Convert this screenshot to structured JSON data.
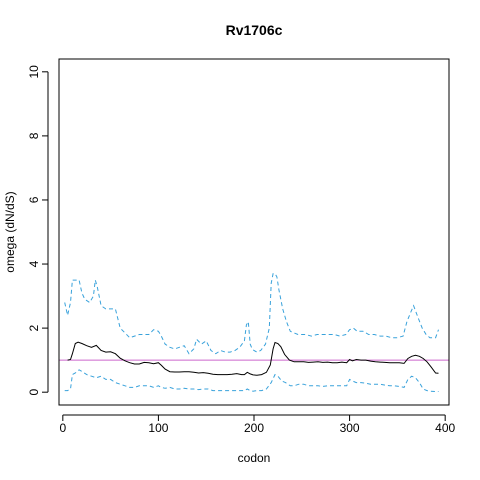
{
  "chart_data": {
    "type": "line",
    "title": "Rv1706c",
    "xlabel": "codon",
    "ylabel": "omega (dN/dS)",
    "xlim": [
      -4,
      404
    ],
    "ylim": [
      -0.4,
      10.4
    ],
    "x_ticks": [
      0,
      100,
      200,
      300,
      400
    ],
    "y_ticks": [
      0,
      2,
      4,
      6,
      8,
      10
    ],
    "x_tick_labels": [
      "0",
      "100",
      "200",
      "300",
      "400"
    ],
    "y_tick_labels": [
      "0",
      "2",
      "4",
      "6",
      "8",
      "10"
    ],
    "reference_line": {
      "y": 1,
      "color": "#cc66cc"
    },
    "series": [
      {
        "role": "estimate",
        "color": "#000000",
        "dash": "solid",
        "x": [
          5,
          8,
          10,
          13,
          16,
          20,
          25,
          30,
          35,
          40,
          45,
          50,
          55,
          60,
          65,
          70,
          75,
          80,
          85,
          90,
          95,
          100,
          103,
          107,
          112,
          117,
          122,
          127,
          132,
          137,
          142,
          147,
          152,
          157,
          162,
          167,
          172,
          177,
          182,
          187,
          190,
          193,
          196,
          199,
          203,
          208,
          213,
          217,
          220,
          222,
          225,
          228,
          232,
          237,
          242,
          247,
          252,
          257,
          262,
          267,
          272,
          277,
          282,
          287,
          292,
          297,
          300,
          303,
          307,
          312,
          317,
          322,
          327,
          332,
          337,
          342,
          347,
          352,
          357,
          361,
          365,
          369,
          373,
          377,
          381,
          385,
          390,
          393
        ],
        "y": [
          1.0,
          1.02,
          1.2,
          1.52,
          1.56,
          1.52,
          1.45,
          1.4,
          1.46,
          1.3,
          1.25,
          1.26,
          1.2,
          1.06,
          0.98,
          0.92,
          0.88,
          0.88,
          0.93,
          0.92,
          0.89,
          0.92,
          0.84,
          0.72,
          0.64,
          0.63,
          0.63,
          0.64,
          0.64,
          0.62,
          0.6,
          0.61,
          0.59,
          0.56,
          0.55,
          0.55,
          0.55,
          0.56,
          0.58,
          0.55,
          0.55,
          0.62,
          0.57,
          0.54,
          0.53,
          0.55,
          0.62,
          0.85,
          1.35,
          1.55,
          1.52,
          1.42,
          1.18,
          1.0,
          0.95,
          0.95,
          0.95,
          0.93,
          0.94,
          0.95,
          0.93,
          0.94,
          0.92,
          0.92,
          0.94,
          0.92,
          1.02,
          0.98,
          1.02,
          1.0,
          1.0,
          0.97,
          0.95,
          0.94,
          0.93,
          0.92,
          0.92,
          0.92,
          0.9,
          1.05,
          1.12,
          1.15,
          1.12,
          1.05,
          0.95,
          0.8,
          0.6,
          0.59
        ]
      },
      {
        "role": "upper",
        "color": "#39a2db",
        "dash": "dashed",
        "x": [
          2,
          5,
          8,
          10,
          13,
          17,
          20,
          23,
          28,
          32,
          34,
          36,
          40,
          45,
          50,
          55,
          60,
          65,
          70,
          75,
          80,
          85,
          90,
          95,
          100,
          103,
          107,
          112,
          117,
          122,
          127,
          132,
          137,
          140,
          145,
          150,
          155,
          160,
          165,
          170,
          175,
          180,
          185,
          190,
          192,
          194,
          196,
          198,
          200,
          203,
          207,
          212,
          216,
          218,
          220,
          222,
          224,
          226,
          230,
          234,
          238,
          242,
          246,
          250,
          254,
          260,
          266,
          272,
          278,
          284,
          290,
          296,
          300,
          304,
          308,
          314,
          320,
          326,
          332,
          338,
          344,
          350,
          356,
          360,
          364,
          367,
          372,
          376,
          380,
          384,
          390,
          393
        ],
        "y": [
          2.8,
          2.4,
          2.8,
          3.5,
          3.5,
          3.5,
          3.1,
          2.9,
          2.8,
          3.0,
          3.5,
          3.3,
          2.7,
          2.6,
          2.6,
          2.6,
          2.0,
          1.85,
          1.7,
          1.75,
          1.8,
          1.8,
          1.8,
          1.95,
          1.9,
          1.75,
          1.5,
          1.4,
          1.35,
          1.4,
          1.45,
          1.2,
          1.35,
          1.65,
          1.5,
          1.6,
          1.3,
          1.2,
          1.3,
          1.25,
          1.25,
          1.3,
          1.4,
          1.6,
          2.1,
          2.2,
          1.5,
          1.35,
          1.3,
          1.25,
          1.3,
          1.5,
          2.0,
          3.4,
          3.7,
          3.7,
          3.6,
          3.2,
          2.6,
          2.2,
          1.9,
          1.85,
          1.8,
          1.8,
          1.8,
          1.75,
          1.8,
          1.8,
          1.8,
          1.8,
          1.75,
          1.8,
          1.95,
          2.0,
          1.9,
          1.9,
          1.8,
          1.8,
          1.75,
          1.75,
          1.7,
          1.7,
          1.75,
          2.2,
          2.5,
          2.7,
          2.3,
          2.0,
          1.8,
          1.7,
          1.7,
          1.95
        ]
      },
      {
        "role": "lower",
        "color": "#39a2db",
        "dash": "dashed",
        "x": [
          2,
          5,
          8,
          10,
          13,
          17,
          20,
          25,
          30,
          35,
          40,
          45,
          50,
          55,
          60,
          65,
          70,
          75,
          80,
          85,
          90,
          95,
          100,
          103,
          107,
          112,
          117,
          122,
          127,
          132,
          137,
          142,
          147,
          152,
          157,
          162,
          167,
          172,
          177,
          182,
          187,
          190,
          193,
          196,
          199,
          203,
          208,
          213,
          218,
          222,
          225,
          229,
          233,
          238,
          242,
          247,
          252,
          257,
          262,
          267,
          272,
          277,
          282,
          287,
          292,
          297,
          300,
          303,
          307,
          312,
          317,
          322,
          327,
          332,
          337,
          342,
          347,
          352,
          357,
          361,
          365,
          369,
          373,
          377,
          381,
          385,
          390,
          393
        ],
        "y": [
          0.05,
          0.05,
          0.1,
          0.55,
          0.6,
          0.7,
          0.65,
          0.55,
          0.5,
          0.45,
          0.5,
          0.4,
          0.4,
          0.3,
          0.25,
          0.2,
          0.15,
          0.15,
          0.2,
          0.2,
          0.2,
          0.15,
          0.2,
          0.15,
          0.12,
          0.15,
          0.1,
          0.1,
          0.12,
          0.1,
          0.1,
          0.08,
          0.1,
          0.1,
          0.05,
          0.05,
          0.05,
          0.05,
          0.05,
          0.05,
          0.05,
          0.05,
          0.1,
          0.05,
          0.03,
          0.05,
          0.05,
          0.1,
          0.3,
          0.55,
          0.5,
          0.35,
          0.3,
          0.2,
          0.2,
          0.25,
          0.25,
          0.2,
          0.2,
          0.2,
          0.18,
          0.2,
          0.2,
          0.2,
          0.2,
          0.2,
          0.4,
          0.35,
          0.3,
          0.3,
          0.28,
          0.25,
          0.25,
          0.25,
          0.22,
          0.2,
          0.2,
          0.18,
          0.15,
          0.4,
          0.5,
          0.45,
          0.3,
          0.1,
          0.05,
          0.03,
          0.02,
          0.02
        ]
      }
    ]
  }
}
